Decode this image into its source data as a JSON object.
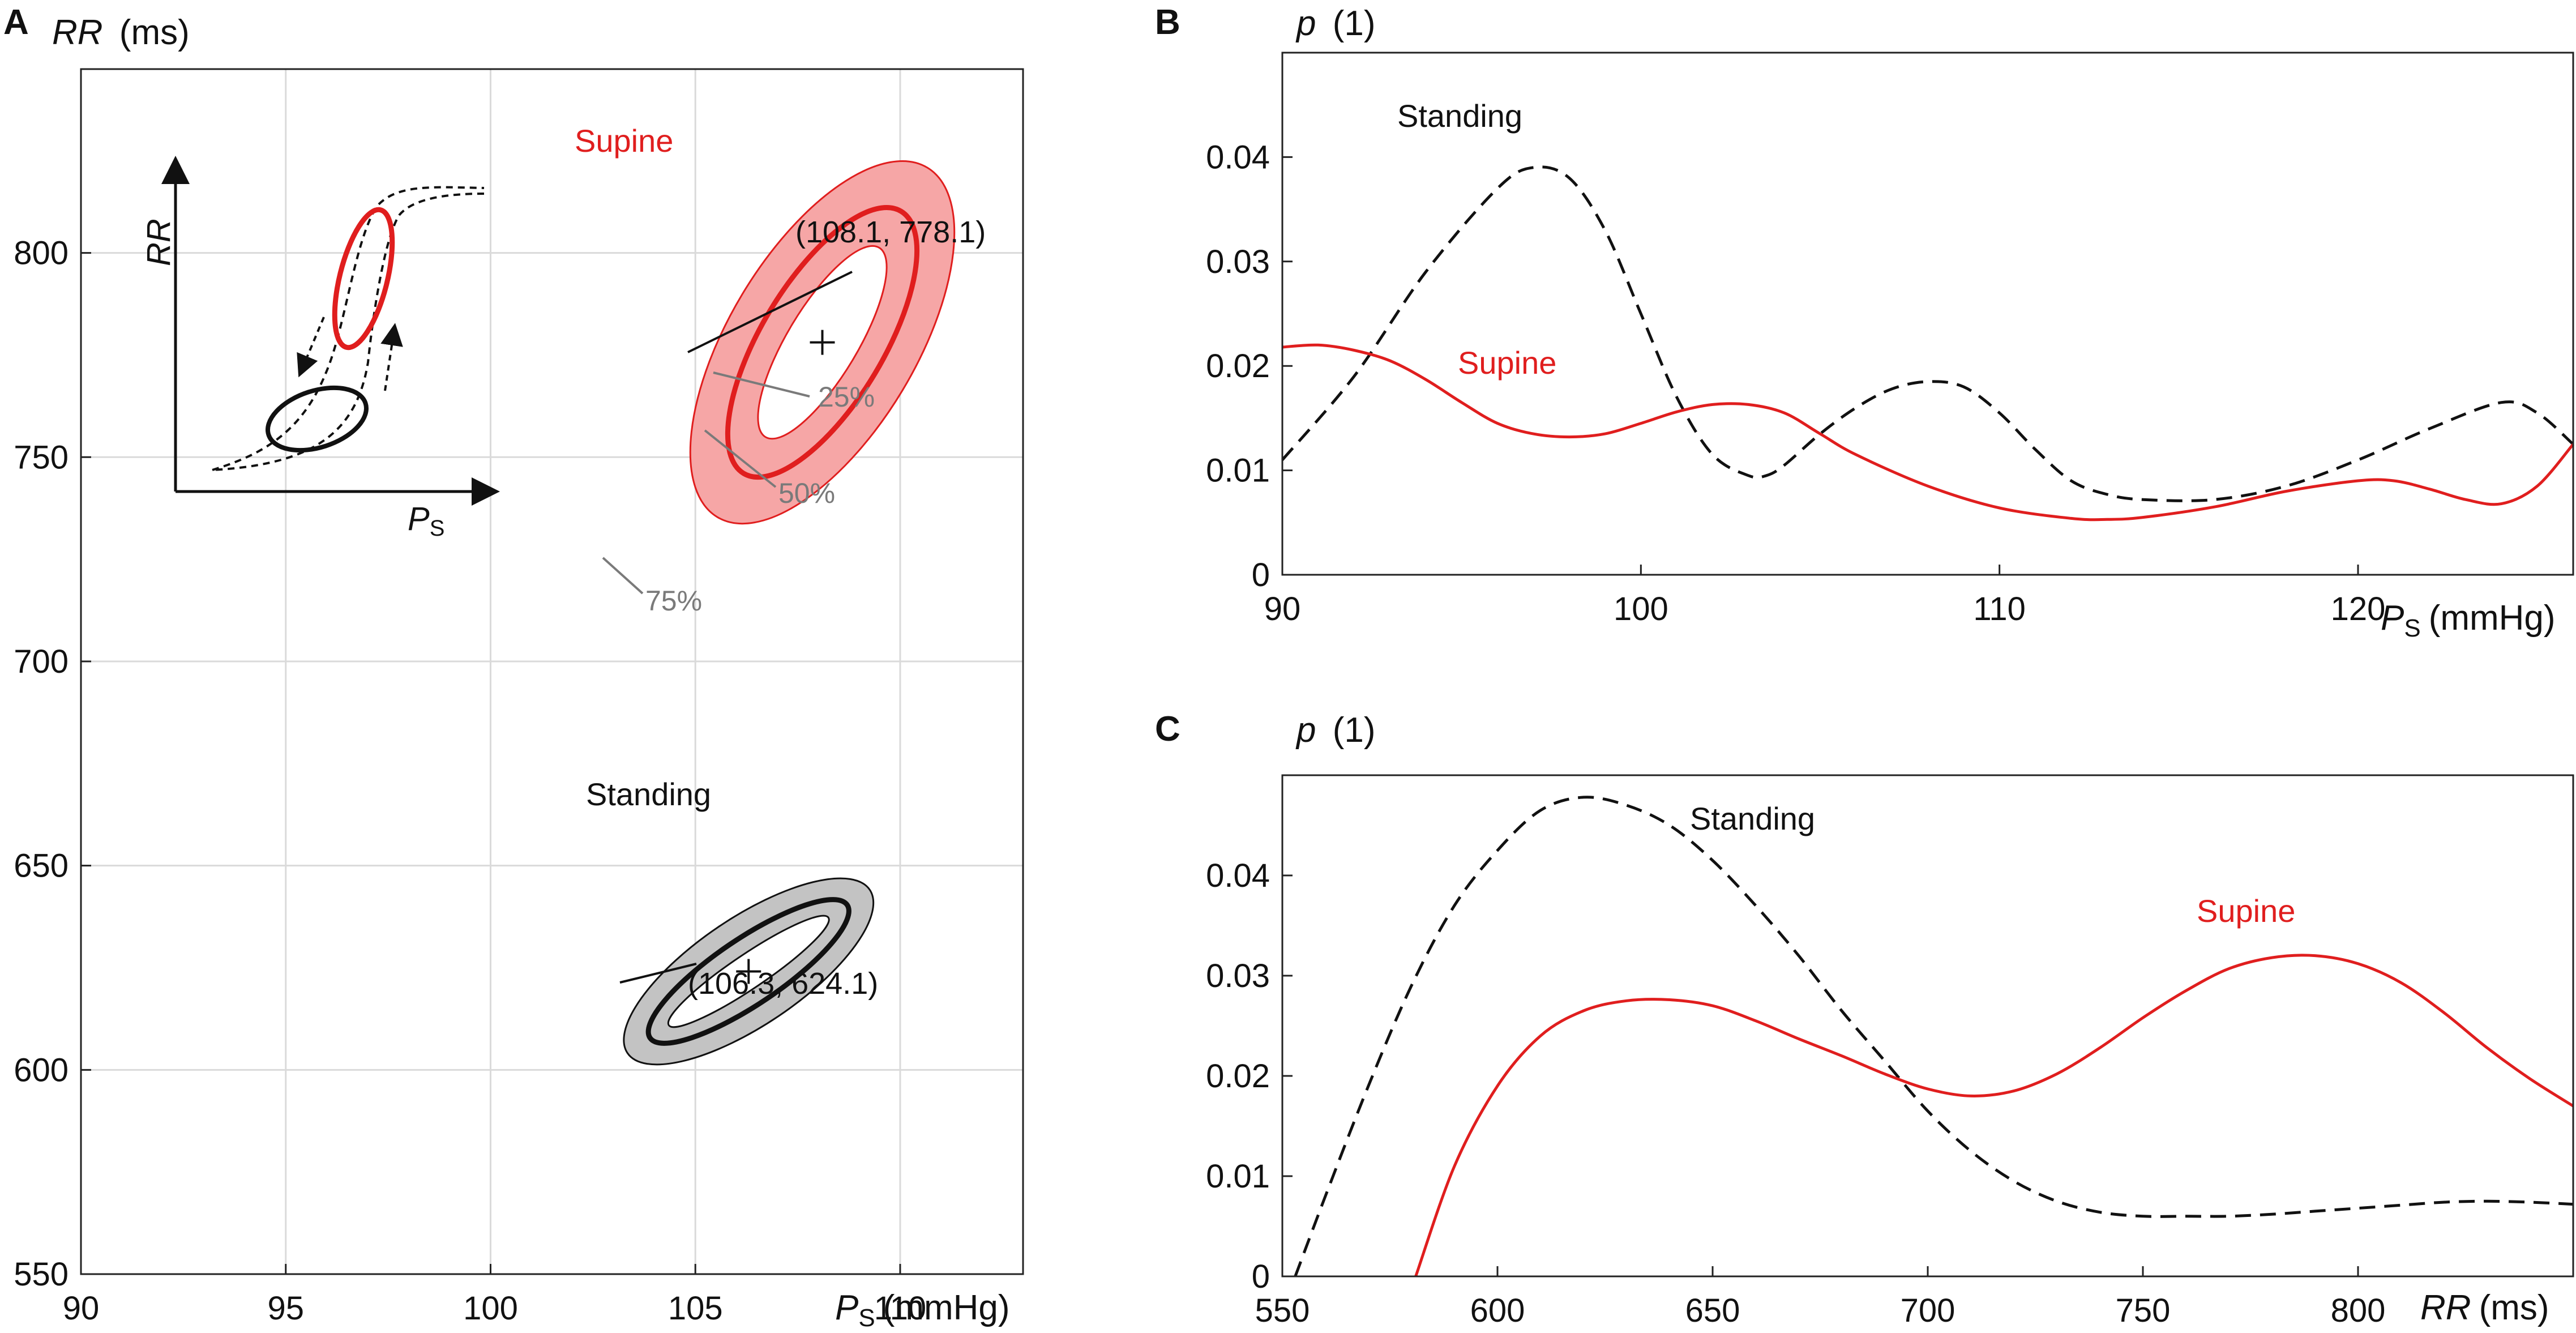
{
  "colors": {
    "supine": "#e01e1e",
    "supine_fill": "#f6a6a6",
    "standing": "#111111",
    "standing_fill": "#c3c3c3",
    "grid": "#dadada",
    "axis": "#222222",
    "annotation": "#7a7a7a"
  },
  "chart_data": [
    {
      "panel": "A",
      "type": "scatter",
      "ylabel_main": "RR",
      "ylabel_unit": "(ms)",
      "xlabel_main": "P",
      "xlabel_sub": "S",
      "xlabel_unit": "(mmHg)",
      "xlim": [
        90,
        113
      ],
      "ylim": [
        550,
        845
      ],
      "xticks": [
        90,
        95,
        100,
        105,
        110
      ],
      "yticks": [
        550,
        600,
        650,
        700,
        750,
        800
      ],
      "grid": true,
      "ellipses": [
        {
          "name": "Supine",
          "label": "Supine",
          "center": [
            108.1,
            778.1
          ],
          "center_label": "(108.1, 778.1)",
          "inner_rx": 1.3,
          "inner_ry": 54,
          "angle": 59,
          "mid_rx": 2.8,
          "mid_ry": 82,
          "outer_rx": 4.4,
          "outer_ry": 110
        },
        {
          "name": "Standing",
          "label": "Standing",
          "center": [
            106.3,
            624.1
          ],
          "center_label": "(106.3, 624.1)",
          "inner_rx": 4.8,
          "inner_ry": 8,
          "angle": 34,
          "mid_rx": 5.9,
          "mid_ry": 18,
          "outer_rx": 7.2,
          "outer_ry": 30
        }
      ],
      "percent_labels": [
        "25%",
        "50%",
        "75%"
      ],
      "inset": {
        "y_label": "RR",
        "x_label_main": "P",
        "x_label_sub": "S"
      }
    },
    {
      "panel": "B",
      "type": "line",
      "ylabel_main": "p",
      "ylabel_unit": "(1)",
      "xlabel_main": "P",
      "xlabel_sub": "S",
      "xlabel_unit": "(mmHg)",
      "xlim": [
        90,
        126
      ],
      "ylim": [
        0,
        0.05
      ],
      "xticks": [
        90,
        100,
        110,
        120
      ],
      "yticks": [
        0,
        0.01,
        0.02,
        0.03,
        0.04
      ],
      "ytick_labels": [
        "0",
        "0.01",
        "0.02",
        "0.03",
        "0.04"
      ],
      "series": [
        {
          "name": "Standing",
          "style": "dashed",
          "x": [
            90,
            92,
            94,
            96,
            97,
            98,
            99,
            100,
            101,
            102,
            103,
            103.5,
            104,
            105,
            106,
            107,
            108,
            109,
            110,
            111,
            112,
            113,
            114,
            116,
            118,
            120,
            122,
            124,
            125,
            126
          ],
          "y": [
            0.011,
            0.019,
            0.029,
            0.037,
            0.039,
            0.038,
            0.033,
            0.025,
            0.017,
            0.0115,
            0.0095,
            0.0095,
            0.0105,
            0.0135,
            0.016,
            0.0178,
            0.0185,
            0.018,
            0.0155,
            0.012,
            0.009,
            0.0077,
            0.0072,
            0.0072,
            0.0085,
            0.011,
            0.014,
            0.0165,
            0.0155,
            0.0125
          ]
        },
        {
          "name": "Supine",
          "style": "solid",
          "x": [
            90,
            91,
            92,
            93,
            94,
            95,
            96,
            97,
            98,
            99,
            100,
            101,
            102,
            103,
            104,
            105,
            106,
            108,
            110,
            112,
            113,
            114,
            116,
            118,
            120,
            121,
            122,
            123,
            124,
            125,
            126
          ],
          "y": [
            0.0218,
            0.022,
            0.0215,
            0.0205,
            0.0187,
            0.0165,
            0.0145,
            0.0135,
            0.0132,
            0.0135,
            0.0145,
            0.0156,
            0.0163,
            0.0163,
            0.0155,
            0.0135,
            0.0115,
            0.0085,
            0.0064,
            0.0054,
            0.0053,
            0.0055,
            0.0065,
            0.008,
            0.009,
            0.009,
            0.0082,
            0.0072,
            0.0068,
            0.0085,
            0.0125
          ]
        }
      ],
      "labels": {
        "standing": "Standing",
        "supine": "Supine"
      }
    },
    {
      "panel": "C",
      "type": "line",
      "ylabel_main": "p",
      "ylabel_unit": "(1)",
      "xlabel_main": "RR",
      "xlabel_unit": "(ms)",
      "xlim": [
        550,
        850
      ],
      "ylim": [
        0,
        0.05
      ],
      "xticks": [
        550,
        600,
        650,
        700,
        750,
        800
      ],
      "yticks": [
        0,
        0.01,
        0.02,
        0.03,
        0.04
      ],
      "ytick_labels": [
        "0",
        "0.01",
        "0.02",
        "0.03",
        "0.04"
      ],
      "series": [
        {
          "name": "Standing",
          "style": "dashed",
          "x": [
            553,
            560,
            570,
            580,
            590,
            600,
            610,
            620,
            630,
            640,
            650,
            660,
            670,
            680,
            690,
            700,
            710,
            720,
            730,
            740,
            750,
            760,
            770,
            780,
            790,
            800,
            810,
            820,
            830,
            840,
            850
          ],
          "y": [
            0,
            0.008,
            0.019,
            0.029,
            0.037,
            0.0425,
            0.0465,
            0.0478,
            0.047,
            0.045,
            0.0415,
            0.037,
            0.032,
            0.0265,
            0.0215,
            0.0165,
            0.0125,
            0.0095,
            0.0075,
            0.0064,
            0.006,
            0.006,
            0.006,
            0.0062,
            0.0065,
            0.0068,
            0.0071,
            0.0074,
            0.0075,
            0.0074,
            0.0072
          ]
        },
        {
          "name": "Supine",
          "style": "solid",
          "x": [
            581,
            590,
            600,
            610,
            620,
            630,
            640,
            650,
            660,
            670,
            680,
            690,
            700,
            710,
            720,
            730,
            740,
            750,
            760,
            770,
            780,
            790,
            800,
            810,
            820,
            830,
            840,
            850
          ],
          "y": [
            0,
            0.011,
            0.019,
            0.024,
            0.0265,
            0.0275,
            0.0276,
            0.027,
            0.0255,
            0.0237,
            0.022,
            0.0202,
            0.0187,
            0.018,
            0.0185,
            0.0202,
            0.0228,
            0.0258,
            0.0285,
            0.0307,
            0.0318,
            0.032,
            0.0312,
            0.0293,
            0.0263,
            0.0228,
            0.0197,
            0.017
          ]
        }
      ],
      "labels": {
        "standing": "Standing",
        "supine": "Supine"
      }
    }
  ],
  "panel_labels": {
    "a": "A",
    "b": "B",
    "c": "C"
  }
}
